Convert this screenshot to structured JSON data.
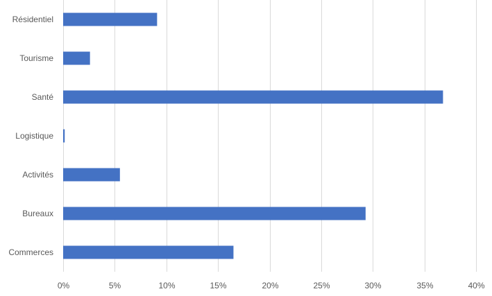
{
  "chart_data": {
    "type": "bar",
    "orientation": "horizontal",
    "categories": [
      "Résidentiel",
      "Tourisme",
      "Santé",
      "Logistique",
      "Activités",
      "Bureaux",
      "Commerces"
    ],
    "values": [
      9.1,
      2.6,
      36.8,
      0.15,
      5.5,
      29.3,
      16.5
    ],
    "xlim": [
      0,
      40
    ],
    "ticks": [
      0,
      5,
      10,
      15,
      20,
      25,
      30,
      35,
      40
    ],
    "tick_labels": [
      "0%",
      "5%",
      "10%",
      "15%",
      "20%",
      "25%",
      "30%",
      "35%",
      "40%"
    ],
    "grid": true,
    "legend": "none",
    "bar_color": "#4472C4",
    "grid_color": "#D9D9D9"
  }
}
